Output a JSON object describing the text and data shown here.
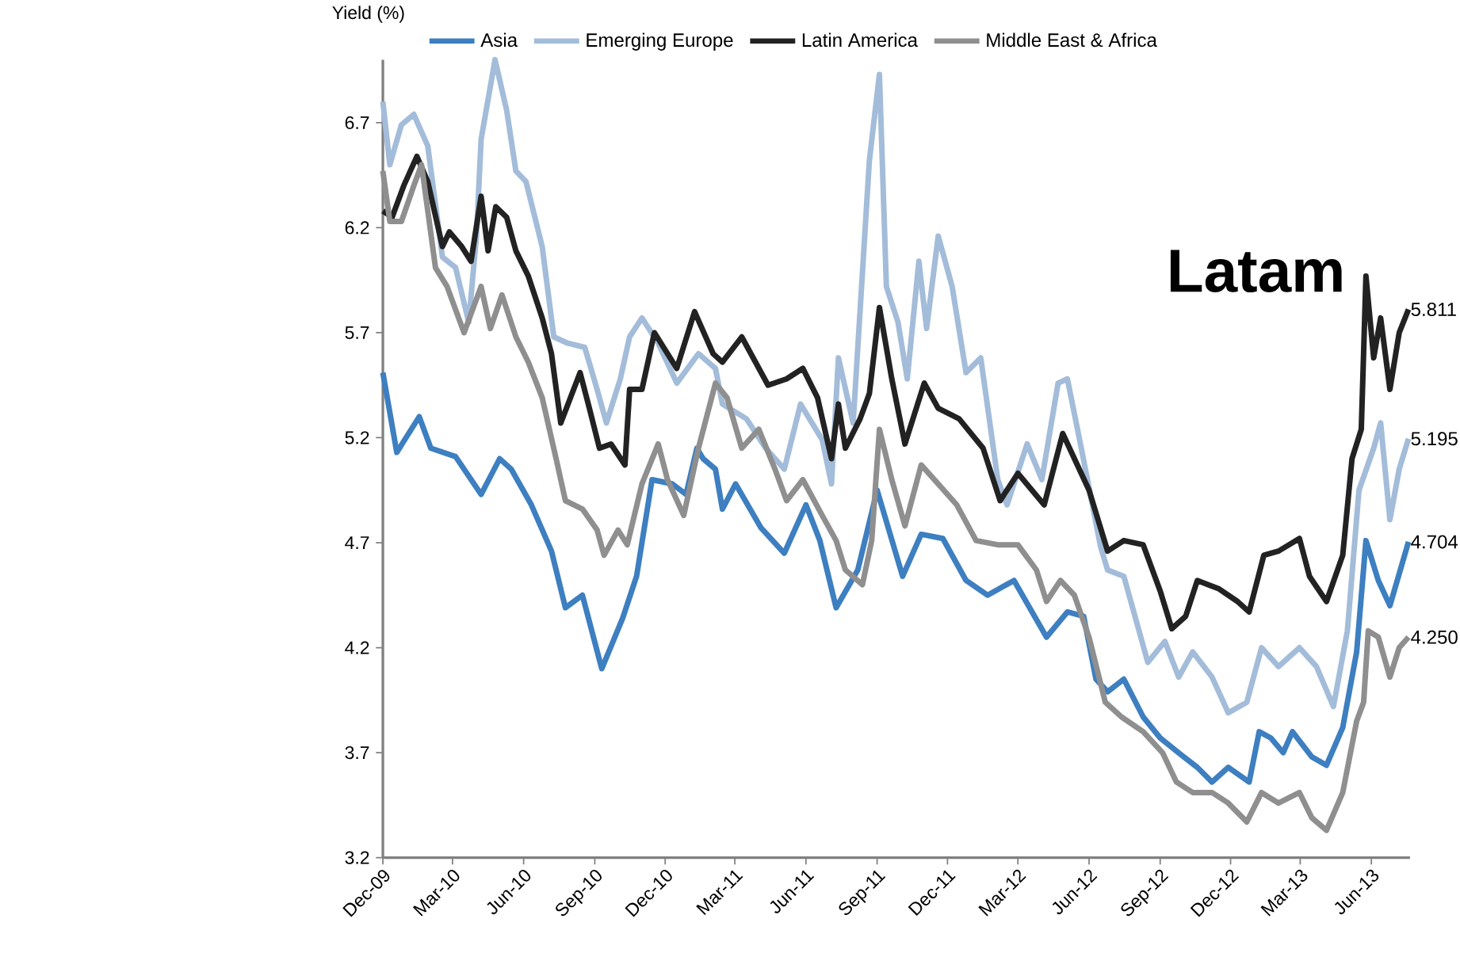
{
  "chart_data": {
    "type": "line",
    "ylabel": "Yield (%)",
    "legend": "top",
    "xlim": [
      "2009-12-01",
      "2013-07-21"
    ],
    "ylim": [
      3.2,
      7.0
    ],
    "xticks": [
      {
        "value": "2009-12-01",
        "label": "Dec-09"
      },
      {
        "value": "2010-03-01",
        "label": "Mar-10"
      },
      {
        "value": "2010-06-01",
        "label": "Jun-10"
      },
      {
        "value": "2010-09-01",
        "label": "Sep-10"
      },
      {
        "value": "2010-12-01",
        "label": "Dec-10"
      },
      {
        "value": "2011-03-01",
        "label": "Mar-11"
      },
      {
        "value": "2011-06-01",
        "label": "Jun-11"
      },
      {
        "value": "2011-09-01",
        "label": "Sep-11"
      },
      {
        "value": "2011-12-01",
        "label": "Dec-11"
      },
      {
        "value": "2012-03-01",
        "label": "Mar-12"
      },
      {
        "value": "2012-06-01",
        "label": "Jun-12"
      },
      {
        "value": "2012-09-01",
        "label": "Sep-12"
      },
      {
        "value": "2012-12-01",
        "label": "Dec-12"
      },
      {
        "value": "2013-03-01",
        "label": "Mar-13"
      },
      {
        "value": "2013-06-01",
        "label": "Jun-13"
      }
    ],
    "yticks": [
      3.2,
      3.7,
      4.2,
      4.7,
      5.2,
      5.7,
      6.2,
      6.7
    ],
    "series": [
      {
        "name": "Asia",
        "color": "#3d7fc0",
        "x": [
          "2009-12-01",
          "2009-12-19",
          "2010-01-17",
          "2010-02-01",
          "2010-03-05",
          "2010-04-07",
          "2010-05-01",
          "2010-05-16",
          "2010-06-11",
          "2010-07-07",
          "2010-07-25",
          "2010-08-16",
          "2010-09-10",
          "2010-10-07",
          "2010-10-25",
          "2010-11-14",
          "2010-12-10",
          "2010-12-28",
          "2011-01-11",
          "2011-01-19",
          "2011-02-04",
          "2011-02-13",
          "2011-03-02",
          "2011-04-04",
          "2011-05-04",
          "2011-06-01",
          "2011-06-19",
          "2011-07-10",
          "2011-08-07",
          "2011-09-01",
          "2011-10-04",
          "2011-10-28",
          "2011-11-25",
          "2011-12-25",
          "2012-01-22",
          "2012-02-25",
          "2012-04-07",
          "2012-05-04",
          "2012-05-25",
          "2012-06-10",
          "2012-06-25",
          "2012-07-16",
          "2012-08-10",
          "2012-09-01",
          "2012-09-28",
          "2012-10-19",
          "2012-11-07",
          "2012-11-28",
          "2012-12-25",
          "2013-01-07",
          "2013-01-22",
          "2013-02-07",
          "2013-02-19",
          "2013-03-16",
          "2013-04-04",
          "2013-04-25",
          "2013-05-13",
          "2013-05-25",
          "2013-06-10",
          "2013-06-25",
          "2013-07-19"
        ],
        "values": [
          5.51,
          5.13,
          5.3,
          5.15,
          5.11,
          4.93,
          5.1,
          5.05,
          4.88,
          4.66,
          4.39,
          4.45,
          4.1,
          4.34,
          4.54,
          5.0,
          4.98,
          4.93,
          5.15,
          5.1,
          5.05,
          4.86,
          4.98,
          4.77,
          4.65,
          4.88,
          4.71,
          4.39,
          4.57,
          4.95,
          4.54,
          4.74,
          4.72,
          4.52,
          4.45,
          4.52,
          4.25,
          4.37,
          4.35,
          4.05,
          3.99,
          4.05,
          3.87,
          3.77,
          3.69,
          3.63,
          3.56,
          3.63,
          3.56,
          3.8,
          3.77,
          3.7,
          3.8,
          3.68,
          3.64,
          3.82,
          4.18,
          4.71,
          4.52,
          4.4,
          4.704
        ]
      },
      {
        "name": "Emerging Europe",
        "color": "#a3bcd9",
        "x": [
          "2009-12-01",
          "2009-12-10",
          "2009-12-25",
          "2010-01-10",
          "2010-01-28",
          "2010-02-16",
          "2010-03-05",
          "2010-03-22",
          "2010-04-01",
          "2010-04-07",
          "2010-04-25",
          "2010-05-10",
          "2010-05-22",
          "2010-06-04",
          "2010-06-25",
          "2010-07-10",
          "2010-07-28",
          "2010-08-19",
          "2010-09-04",
          "2010-09-16",
          "2010-10-04",
          "2010-10-16",
          "2010-11-01",
          "2010-11-22",
          "2010-12-16",
          "2011-01-13",
          "2011-02-04",
          "2011-02-13",
          "2011-03-16",
          "2011-04-10",
          "2011-05-04",
          "2011-05-25",
          "2011-06-22",
          "2011-07-04",
          "2011-07-13",
          "2011-08-01",
          "2011-08-22",
          "2011-09-04",
          "2011-09-13",
          "2011-09-28",
          "2011-10-10",
          "2011-10-25",
          "2011-11-04",
          "2011-11-19",
          "2011-12-07",
          "2011-12-25",
          "2012-01-13",
          "2012-02-04",
          "2012-02-16",
          "2012-03-13",
          "2012-04-01",
          "2012-04-22",
          "2012-05-04",
          "2012-05-22",
          "2012-06-16",
          "2012-06-25",
          "2012-07-16",
          "2012-08-16",
          "2012-09-07",
          "2012-09-25",
          "2012-10-13",
          "2012-11-07",
          "2012-11-28",
          "2012-12-22",
          "2013-01-10",
          "2013-02-01",
          "2013-02-28",
          "2013-03-22",
          "2013-04-13",
          "2013-05-01",
          "2013-05-16",
          "2013-06-04",
          "2013-06-13",
          "2013-06-25",
          "2013-07-07",
          "2013-07-19"
        ],
        "values": [
          6.8,
          6.5,
          6.69,
          6.74,
          6.59,
          6.06,
          6.01,
          5.75,
          6.16,
          6.62,
          7.0,
          6.76,
          6.47,
          6.42,
          6.11,
          5.68,
          5.65,
          5.63,
          5.43,
          5.27,
          5.48,
          5.68,
          5.77,
          5.65,
          5.46,
          5.6,
          5.53,
          5.36,
          5.29,
          5.15,
          5.05,
          5.36,
          5.19,
          4.98,
          5.58,
          5.27,
          6.52,
          6.93,
          5.92,
          5.75,
          5.48,
          6.04,
          5.72,
          6.16,
          5.92,
          5.51,
          5.58,
          5.0,
          4.88,
          5.17,
          5.0,
          5.46,
          5.48,
          5.15,
          4.68,
          4.57,
          4.54,
          4.13,
          4.23,
          4.06,
          4.18,
          4.06,
          3.89,
          3.94,
          4.2,
          4.11,
          4.2,
          4.11,
          3.92,
          4.28,
          4.95,
          5.15,
          5.27,
          4.81,
          5.05,
          5.195
        ]
      },
      {
        "name": "Latin America",
        "color": "#222222",
        "x": [
          "2009-12-01",
          "2009-12-13",
          "2009-12-28",
          "2010-01-14",
          "2010-01-28",
          "2010-02-16",
          "2010-02-25",
          "2010-03-13",
          "2010-03-25",
          "2010-04-07",
          "2010-04-16",
          "2010-04-26",
          "2010-05-10",
          "2010-05-22",
          "2010-06-07",
          "2010-06-25",
          "2010-07-07",
          "2010-07-19",
          "2010-08-13",
          "2010-08-25",
          "2010-09-07",
          "2010-09-22",
          "2010-10-10",
          "2010-10-16",
          "2010-11-01",
          "2010-11-17",
          "2010-12-16",
          "2011-01-08",
          "2011-02-01",
          "2011-02-13",
          "2011-03-10",
          "2011-04-13",
          "2011-05-07",
          "2011-05-28",
          "2011-06-16",
          "2011-07-04",
          "2011-07-13",
          "2011-07-22",
          "2011-08-10",
          "2011-08-22",
          "2011-09-04",
          "2011-09-20",
          "2011-10-07",
          "2011-11-01",
          "2011-11-19",
          "2011-12-16",
          "2012-01-16",
          "2012-02-07",
          "2012-03-01",
          "2012-04-04",
          "2012-04-28",
          "2012-06-01",
          "2012-06-25",
          "2012-07-16",
          "2012-08-10",
          "2012-09-01",
          "2012-09-16",
          "2012-10-04",
          "2012-10-19",
          "2012-11-16",
          "2012-12-10",
          "2012-12-25",
          "2013-01-13",
          "2013-02-01",
          "2013-02-28",
          "2013-03-13",
          "2013-04-04",
          "2013-04-25",
          "2013-05-07",
          "2013-05-19",
          "2013-05-25",
          "2013-06-04",
          "2013-06-13",
          "2013-06-25",
          "2013-07-07",
          "2013-07-19"
        ],
        "values": [
          6.28,
          6.25,
          6.4,
          6.54,
          6.42,
          6.11,
          6.18,
          6.11,
          6.04,
          6.35,
          6.09,
          6.3,
          6.25,
          6.09,
          5.97,
          5.77,
          5.6,
          5.27,
          5.51,
          5.34,
          5.15,
          5.17,
          5.07,
          5.43,
          5.43,
          5.7,
          5.53,
          5.8,
          5.6,
          5.56,
          5.68,
          5.45,
          5.48,
          5.53,
          5.39,
          5.1,
          5.36,
          5.15,
          5.29,
          5.41,
          5.82,
          5.48,
          5.17,
          5.46,
          5.34,
          5.29,
          5.15,
          4.9,
          5.03,
          4.88,
          5.22,
          4.95,
          4.66,
          4.71,
          4.69,
          4.47,
          4.29,
          4.35,
          4.52,
          4.48,
          4.42,
          4.37,
          4.64,
          4.66,
          4.72,
          4.54,
          4.42,
          4.64,
          5.1,
          5.24,
          5.97,
          5.58,
          5.77,
          5.43,
          5.7,
          5.811
        ]
      },
      {
        "name": "Middle East & Africa",
        "color": "#8f8f8f",
        "x": [
          "2009-12-01",
          "2009-12-10",
          "2009-12-25",
          "2010-01-10",
          "2010-01-20",
          "2010-02-07",
          "2010-02-22",
          "2010-03-16",
          "2010-04-07",
          "2010-04-19",
          "2010-05-04",
          "2010-05-22",
          "2010-06-07",
          "2010-06-25",
          "2010-07-13",
          "2010-07-25",
          "2010-08-16",
          "2010-09-04",
          "2010-09-13",
          "2010-10-01",
          "2010-10-13",
          "2010-11-01",
          "2010-11-22",
          "2010-12-04",
          "2010-12-25",
          "2011-01-13",
          "2011-02-04",
          "2011-02-19",
          "2011-03-10",
          "2011-04-01",
          "2011-04-22",
          "2011-05-07",
          "2011-05-28",
          "2011-06-22",
          "2011-07-10",
          "2011-07-22",
          "2011-08-13",
          "2011-08-25",
          "2011-09-04",
          "2011-09-20",
          "2011-10-07",
          "2011-10-28",
          "2011-11-19",
          "2011-12-13",
          "2012-01-07",
          "2012-02-04",
          "2012-03-01",
          "2012-03-25",
          "2012-04-07",
          "2012-04-25",
          "2012-05-13",
          "2012-06-01",
          "2012-06-22",
          "2012-07-13",
          "2012-08-10",
          "2012-09-04",
          "2012-09-22",
          "2012-10-13",
          "2012-11-07",
          "2012-11-28",
          "2012-12-22",
          "2013-01-10",
          "2013-02-01",
          "2013-02-28",
          "2013-03-16",
          "2013-04-04",
          "2013-04-25",
          "2013-05-13",
          "2013-05-22",
          "2013-05-28",
          "2013-06-10",
          "2013-06-25",
          "2013-07-07",
          "2013-07-19"
        ],
        "values": [
          6.47,
          6.23,
          6.23,
          6.4,
          6.5,
          6.01,
          5.92,
          5.7,
          5.92,
          5.72,
          5.88,
          5.68,
          5.56,
          5.39,
          5.1,
          4.9,
          4.86,
          4.76,
          4.64,
          4.76,
          4.69,
          4.98,
          5.17,
          5.0,
          4.83,
          5.15,
          5.46,
          5.39,
          5.15,
          5.24,
          5.05,
          4.9,
          5.0,
          4.83,
          4.71,
          4.57,
          4.5,
          4.71,
          5.24,
          5.0,
          4.78,
          5.07,
          4.98,
          4.88,
          4.71,
          4.69,
          4.69,
          4.57,
          4.42,
          4.52,
          4.45,
          4.25,
          3.94,
          3.87,
          3.8,
          3.7,
          3.56,
          3.51,
          3.51,
          3.46,
          3.37,
          3.51,
          3.46,
          3.51,
          3.39,
          3.33,
          3.51,
          3.85,
          3.94,
          4.28,
          4.25,
          4.06,
          4.2,
          4.25
        ]
      }
    ],
    "annotations": [
      "Latam",
      {
        "text": "5.811",
        "x": "2013-07-19",
        "y": 5.811
      },
      {
        "text": "5.195",
        "x": "2013-07-19",
        "y": 5.195
      },
      {
        "text": "4.704",
        "x": "2013-07-19",
        "y": 4.704
      },
      {
        "text": "4.250",
        "x": "2013-07-19",
        "y": 4.25
      }
    ]
  }
}
